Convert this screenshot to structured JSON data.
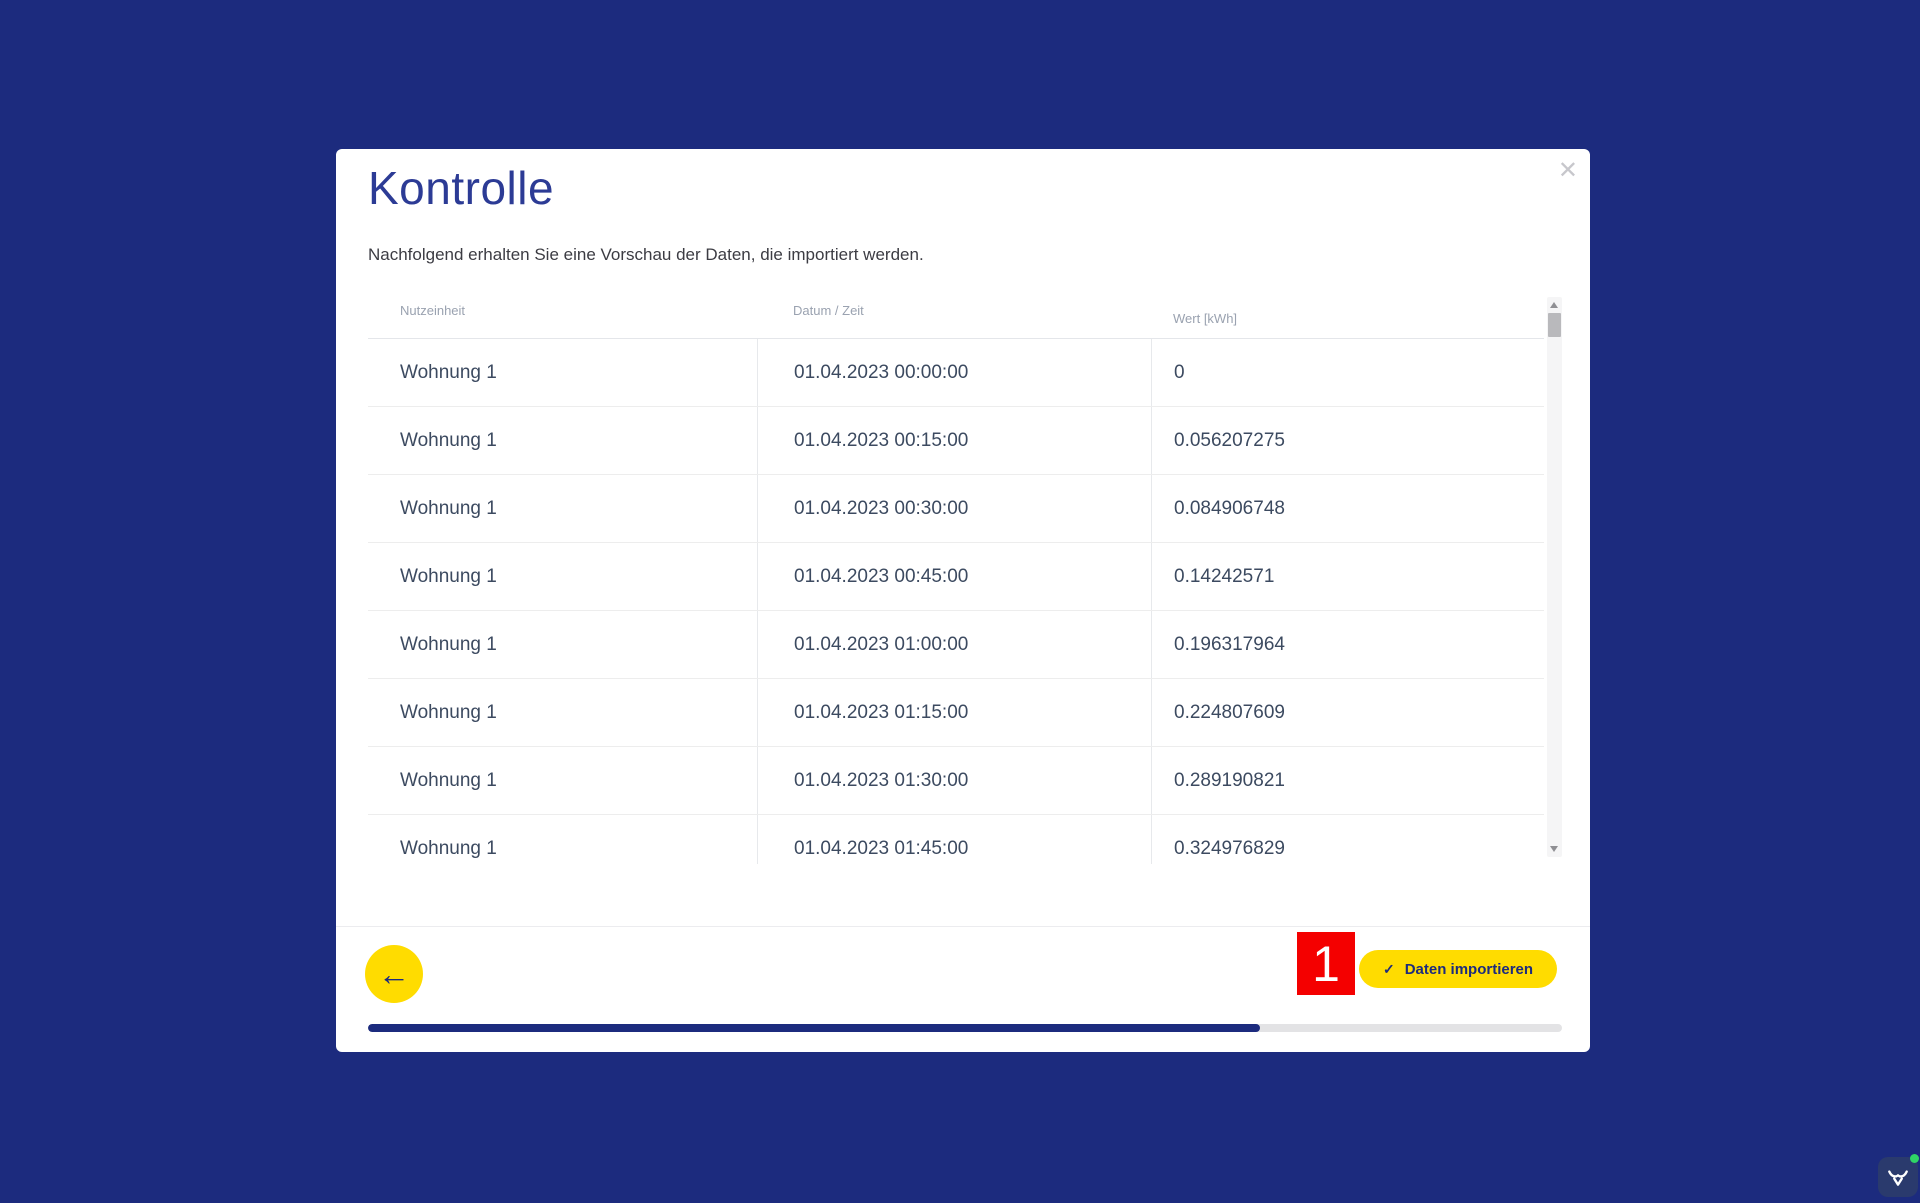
{
  "modal": {
    "title": "Kontrolle",
    "subtitle": "Nachfolgend erhalten Sie eine Vorschau der Daten, die importiert werden.",
    "close_icon": "✕"
  },
  "table": {
    "columns": [
      "Nutzeinheit",
      "Datum / Zeit",
      "Wert [kWh]"
    ],
    "rows": [
      [
        "Wohnung 1",
        "01.04.2023 00:00:00",
        "0"
      ],
      [
        "Wohnung 1",
        "01.04.2023 00:15:00",
        "0.056207275"
      ],
      [
        "Wohnung 1",
        "01.04.2023 00:30:00",
        "0.084906748"
      ],
      [
        "Wohnung 1",
        "01.04.2023 00:45:00",
        "0.14242571"
      ],
      [
        "Wohnung 1",
        "01.04.2023 01:00:00",
        "0.196317964"
      ],
      [
        "Wohnung 1",
        "01.04.2023 01:15:00",
        "0.224807609"
      ],
      [
        "Wohnung 1",
        "01.04.2023 01:30:00",
        "0.289190821"
      ],
      [
        "Wohnung 1",
        "01.04.2023 01:45:00",
        "0.324976829"
      ]
    ]
  },
  "footer": {
    "back_icon": "←",
    "step_badge": "1",
    "import_check_icon": "✓",
    "import_label": "Daten importieren",
    "progress_percent": 74.7
  },
  "colors": {
    "page_bg": "#1c2b7e",
    "accent_yellow": "#ffdc00",
    "badge_red": "#f40000",
    "title_blue": "#2c3b95",
    "progress_fill": "#1c2b7e",
    "status_dot_green": "#2fd566"
  }
}
